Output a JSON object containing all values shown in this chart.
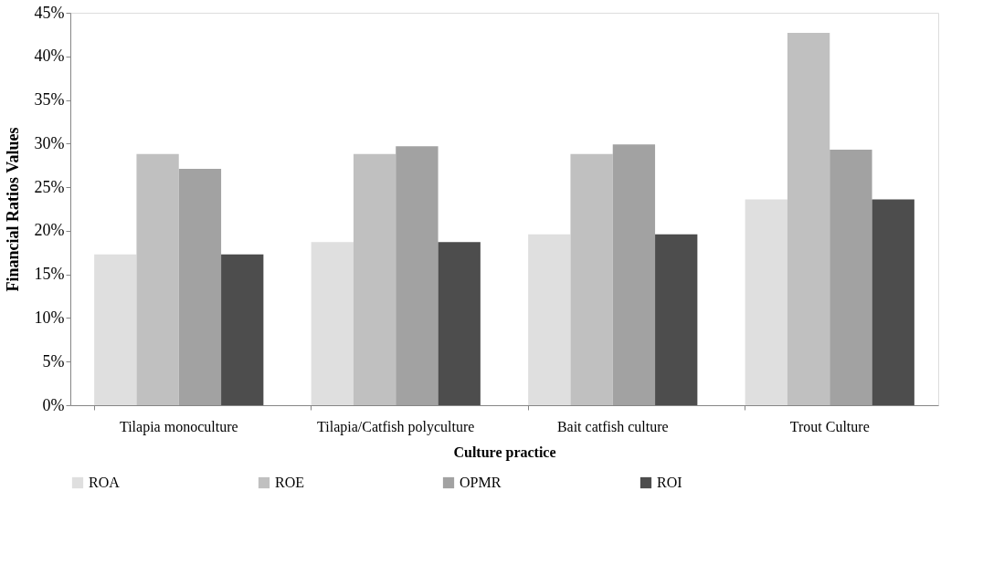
{
  "chart_data": {
    "type": "bar",
    "xlabel": "Culture practice",
    "ylabel": "Financial Ratios Values",
    "categories": [
      "Tilapia monoculture",
      "Tilapia/Catfish polyculture",
      "Bait catfish culture",
      "Trout Culture"
    ],
    "series": [
      {
        "name": "ROA",
        "color": "#dfdfdf",
        "values": [
          17.3,
          18.7,
          19.6,
          23.6
        ]
      },
      {
        "name": "ROE",
        "color": "#c0c0c0",
        "values": [
          28.8,
          28.8,
          28.8,
          42.7
        ]
      },
      {
        "name": "OPMR",
        "color": "#a2a2a2",
        "values": [
          27.1,
          29.7,
          29.9,
          29.3
        ]
      },
      {
        "name": "ROI",
        "color": "#4d4d4d",
        "values": [
          17.3,
          18.7,
          19.6,
          23.6
        ]
      }
    ],
    "ylim": [
      0,
      45
    ],
    "yticks": [
      {
        "value": 0,
        "label": "0%"
      },
      {
        "value": 5,
        "label": "5%"
      },
      {
        "value": 10,
        "label": "10%"
      },
      {
        "value": 15,
        "label": "15%"
      },
      {
        "value": 20,
        "label": "20%"
      },
      {
        "value": 25,
        "label": "25%"
      },
      {
        "value": 30,
        "label": "30%"
      },
      {
        "value": 35,
        "label": "35%"
      },
      {
        "value": 40,
        "label": "40%"
      },
      {
        "value": 45,
        "label": "45%"
      }
    ],
    "grid": false,
    "legend": "bottom"
  }
}
